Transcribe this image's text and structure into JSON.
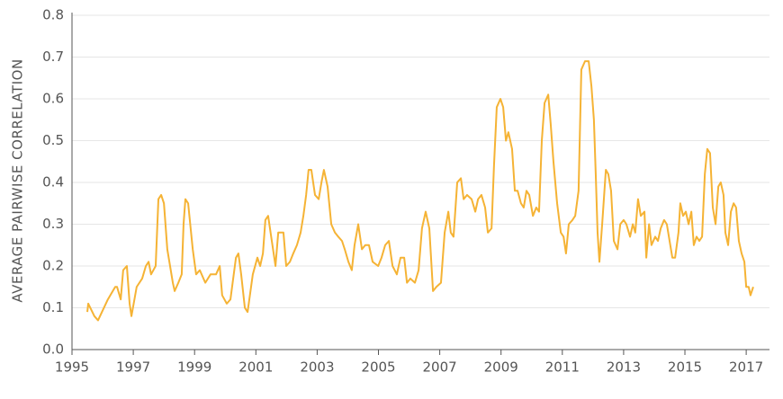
{
  "chart_data": {
    "type": "line",
    "y_label": "AVERAGE PAIRWISE CORRELATION",
    "x": [
      1995.5,
      1995.53,
      1995.73,
      1995.85,
      1996.17,
      1996.41,
      1996.47,
      1996.59,
      1996.67,
      1996.79,
      1996.88,
      1996.94,
      1997.11,
      1997.29,
      1997.41,
      1997.5,
      1997.58,
      1997.73,
      1997.82,
      1997.91,
      1998.0,
      1998.11,
      1998.29,
      1998.35,
      1998.47,
      1998.58,
      1998.64,
      1998.7,
      1998.79,
      1998.94,
      1999.05,
      1999.17,
      1999.35,
      1999.52,
      1999.7,
      1999.82,
      1999.9,
      2000.05,
      2000.17,
      2000.35,
      2000.43,
      2000.52,
      2000.64,
      2000.73,
      2000.9,
      2001.05,
      2001.14,
      2001.23,
      2001.31,
      2001.4,
      2001.52,
      2001.64,
      2001.73,
      2001.9,
      2001.99,
      2002.11,
      2002.22,
      2002.34,
      2002.46,
      2002.55,
      2002.64,
      2002.72,
      2002.81,
      2002.93,
      2003.05,
      2003.14,
      2003.22,
      2003.34,
      2003.46,
      2003.58,
      2003.69,
      2003.81,
      2003.9,
      2004.02,
      2004.13,
      2004.22,
      2004.34,
      2004.46,
      2004.57,
      2004.69,
      2004.81,
      2004.99,
      2005.1,
      2005.22,
      2005.34,
      2005.46,
      2005.6,
      2005.72,
      2005.84,
      2005.93,
      2006.04,
      2006.19,
      2006.31,
      2006.42,
      2006.54,
      2006.66,
      2006.78,
      2006.89,
      2007.04,
      2007.16,
      2007.28,
      2007.36,
      2007.45,
      2007.57,
      2007.69,
      2007.78,
      2007.89,
      2008.04,
      2008.16,
      2008.25,
      2008.36,
      2008.48,
      2008.57,
      2008.69,
      2008.77,
      2008.86,
      2008.98,
      2009.07,
      2009.16,
      2009.24,
      2009.36,
      2009.45,
      2009.54,
      2009.65,
      2009.74,
      2009.83,
      2009.92,
      2010.04,
      2010.15,
      2010.24,
      2010.33,
      2010.42,
      2010.54,
      2010.62,
      2010.71,
      2010.83,
      2010.95,
      2011.04,
      2011.12,
      2011.21,
      2011.33,
      2011.42,
      2011.53,
      2011.62,
      2011.74,
      2011.86,
      2011.95,
      2012.03,
      2012.09,
      2012.15,
      2012.21,
      2012.3,
      2012.42,
      2012.5,
      2012.59,
      2012.68,
      2012.8,
      2012.89,
      2013.0,
      2013.09,
      2013.21,
      2013.3,
      2013.38,
      2013.47,
      2013.56,
      2013.68,
      2013.74,
      2013.83,
      2013.91,
      2014.03,
      2014.12,
      2014.21,
      2014.32,
      2014.41,
      2014.5,
      2014.59,
      2014.68,
      2014.79,
      2014.85,
      2014.94,
      2015.03,
      2015.12,
      2015.21,
      2015.29,
      2015.38,
      2015.47,
      2015.56,
      2015.65,
      2015.73,
      2015.82,
      2015.91,
      2016.0,
      2016.09,
      2016.17,
      2016.26,
      2016.32,
      2016.41,
      2016.5,
      2016.59,
      2016.67,
      2016.76,
      2016.85,
      2016.94,
      2017.0,
      2017.08,
      2017.14,
      2017.23
    ],
    "series": [
      {
        "color": "#f5b335",
        "values": [
          0.09,
          0.11,
          0.08,
          0.07,
          0.12,
          0.15,
          0.15,
          0.12,
          0.19,
          0.2,
          0.11,
          0.08,
          0.15,
          0.17,
          0.2,
          0.21,
          0.18,
          0.2,
          0.36,
          0.37,
          0.35,
          0.24,
          0.16,
          0.14,
          0.16,
          0.18,
          0.3,
          0.36,
          0.35,
          0.24,
          0.18,
          0.19,
          0.16,
          0.18,
          0.18,
          0.2,
          0.13,
          0.11,
          0.12,
          0.22,
          0.23,
          0.18,
          0.1,
          0.09,
          0.18,
          0.22,
          0.2,
          0.23,
          0.31,
          0.32,
          0.26,
          0.2,
          0.28,
          0.28,
          0.2,
          0.21,
          0.23,
          0.25,
          0.28,
          0.32,
          0.37,
          0.43,
          0.43,
          0.37,
          0.36,
          0.4,
          0.43,
          0.39,
          0.3,
          0.28,
          0.27,
          0.26,
          0.24,
          0.21,
          0.19,
          0.25,
          0.3,
          0.24,
          0.25,
          0.25,
          0.21,
          0.2,
          0.22,
          0.25,
          0.26,
          0.2,
          0.18,
          0.22,
          0.22,
          0.16,
          0.17,
          0.16,
          0.19,
          0.29,
          0.33,
          0.29,
          0.14,
          0.15,
          0.16,
          0.28,
          0.33,
          0.28,
          0.27,
          0.4,
          0.41,
          0.36,
          0.37,
          0.36,
          0.33,
          0.36,
          0.37,
          0.34,
          0.28,
          0.29,
          0.44,
          0.58,
          0.6,
          0.58,
          0.5,
          0.52,
          0.48,
          0.38,
          0.38,
          0.35,
          0.34,
          0.38,
          0.37,
          0.32,
          0.34,
          0.33,
          0.5,
          0.59,
          0.61,
          0.54,
          0.45,
          0.35,
          0.28,
          0.27,
          0.23,
          0.3,
          0.31,
          0.32,
          0.38,
          0.67,
          0.69,
          0.69,
          0.63,
          0.55,
          0.42,
          0.28,
          0.21,
          0.3,
          0.43,
          0.42,
          0.38,
          0.26,
          0.24,
          0.3,
          0.31,
          0.3,
          0.27,
          0.3,
          0.28,
          0.36,
          0.32,
          0.33,
          0.22,
          0.3,
          0.25,
          0.27,
          0.26,
          0.29,
          0.31,
          0.3,
          0.26,
          0.22,
          0.22,
          0.28,
          0.35,
          0.32,
          0.33,
          0.3,
          0.33,
          0.25,
          0.27,
          0.26,
          0.27,
          0.42,
          0.48,
          0.47,
          0.34,
          0.3,
          0.39,
          0.4,
          0.37,
          0.28,
          0.25,
          0.33,
          0.35,
          0.34,
          0.26,
          0.23,
          0.21,
          0.15,
          0.15,
          0.13,
          0.15
        ]
      }
    ],
    "xlim": [
      1995,
      2017.76
    ],
    "xticks": [
      1995,
      1997,
      1999,
      2001,
      2003,
      2005,
      2007,
      2009,
      2011,
      2013,
      2015,
      2017
    ],
    "ylim": [
      0,
      0.8
    ],
    "yticks": [
      {
        "value": 0,
        "label": "0.0"
      },
      0.1,
      0.2,
      0.3,
      0.4,
      0.5,
      0.6,
      0.7,
      0.8
    ],
    "grid": true
  }
}
